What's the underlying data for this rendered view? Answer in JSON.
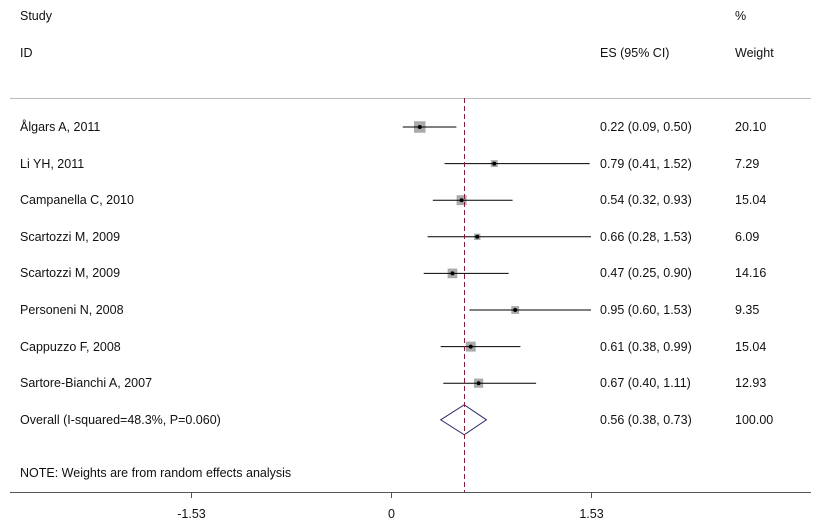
{
  "headers": {
    "study_line1": "Study",
    "study_line2": "ID",
    "es_label": "ES (95% CI)",
    "weight_line1": "%",
    "weight_line2": "Weight"
  },
  "note": "NOTE: Weights are from random effects analysis",
  "chart_data": {
    "type": "forest",
    "title": "",
    "xlabel": "",
    "ylabel": "",
    "reference_line": 0.56,
    "null_line": 0,
    "x_ticks": [
      -1.53,
      0,
      1.53
    ],
    "x_tick_labels": [
      "-1.53",
      "0",
      "1.53"
    ],
    "studies": [
      {
        "label": "Ålgars A, 2011",
        "es": 0.22,
        "lo": 0.09,
        "hi": 0.5,
        "ci_text": "0.22 (0.09, 0.50)",
        "weight": "20.10"
      },
      {
        "label": "Li YH, 2011",
        "es": 0.79,
        "lo": 0.41,
        "hi": 1.52,
        "ci_text": "0.79 (0.41, 1.52)",
        "weight": "7.29"
      },
      {
        "label": "Campanella C, 2010",
        "es": 0.54,
        "lo": 0.32,
        "hi": 0.93,
        "ci_text": "0.54 (0.32, 0.93)",
        "weight": "15.04"
      },
      {
        "label": "Scartozzi M, 2009",
        "es": 0.66,
        "lo": 0.28,
        "hi": 1.53,
        "ci_text": "0.66 (0.28, 1.53)",
        "weight": "6.09"
      },
      {
        "label": "Scartozzi M, 2009",
        "es": 0.47,
        "lo": 0.25,
        "hi": 0.9,
        "ci_text": "0.47 (0.25, 0.90)",
        "weight": "14.16"
      },
      {
        "label": "Personeni N, 2008",
        "es": 0.95,
        "lo": 0.6,
        "hi": 1.53,
        "ci_text": "0.95 (0.60, 1.53)",
        "weight": "9.35"
      },
      {
        "label": "Cappuzzo F, 2008",
        "es": 0.61,
        "lo": 0.38,
        "hi": 0.99,
        "ci_text": "0.61 (0.38, 0.99)",
        "weight": "15.04"
      },
      {
        "label": "Sartore-Bianchi A, 2007",
        "es": 0.67,
        "lo": 0.4,
        "hi": 1.11,
        "ci_text": "0.67 (0.40, 1.11)",
        "weight": "12.93"
      }
    ],
    "overall": {
      "label": "Overall  (I-squared=48.3%, P=0.060)",
      "es": 0.56,
      "lo": 0.38,
      "hi": 0.73,
      "ci_text": "0.56 (0.38, 0.73)",
      "weight": "100.00"
    },
    "colors": {
      "diamond": "#2b2b6b",
      "ref_line": "#8b1a3a",
      "box": "#aaaaaa",
      "ci_line": "#000000"
    }
  }
}
